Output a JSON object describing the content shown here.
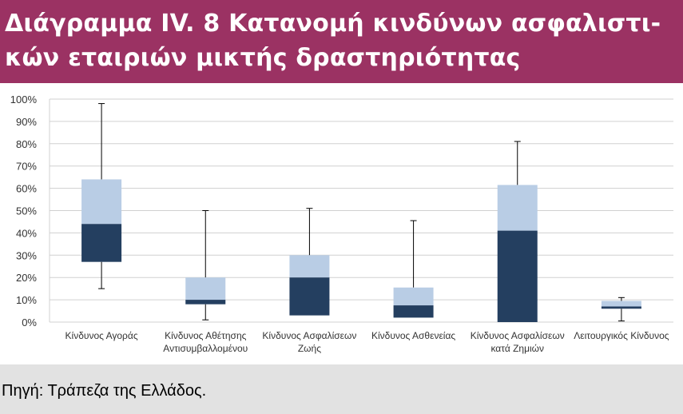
{
  "header": {
    "title_line1": "Διάγραμμα IV. 8 Κατανομή κινδύνων ασφαλιστι-",
    "title_line2": "κών εταιριών μικτής δραστηριότητας"
  },
  "colors": {
    "header_bg": "#9b3263",
    "lower_box": "#243f60",
    "upper_box": "#b9cde5",
    "whisker": "#000000",
    "grid": "#d0d0d0",
    "footer_bg": "#e2e2e2"
  },
  "chart_data": {
    "type": "boxplot",
    "ylim": [
      0,
      100
    ],
    "y_ticks": [
      "0%",
      "10%",
      "20%",
      "30%",
      "40%",
      "50%",
      "60%",
      "70%",
      "80%",
      "90%",
      "100%"
    ],
    "grid": true,
    "categories": [
      [
        "Κίνδυνος Αγοράς"
      ],
      [
        "Κίνδυνος Αθέτησης",
        "Αντισυμβαλλομένου"
      ],
      [
        "Κίνδυνος Ασφαλίσεων",
        "Ζωής"
      ],
      [
        "Κίνδυνος Ασθενείας"
      ],
      [
        "Κίνδυνος Ασφαλίσεων",
        "κατά Ζημιών"
      ],
      [
        "Λειτουργικός Κίνδυνος"
      ]
    ],
    "boxes": [
      {
        "min": 15,
        "q1": 27,
        "median": 44,
        "q3": 64,
        "max": 98
      },
      {
        "min": 1,
        "q1": 8,
        "median": 10,
        "q3": 20,
        "max": 50
      },
      {
        "min": 3,
        "q1": 3,
        "median": 20,
        "q3": 30,
        "max": 51
      },
      {
        "min": 2,
        "q1": 2,
        "median": 7.5,
        "q3": 15.5,
        "max": 45.5
      },
      {
        "min": 0,
        "q1": 0,
        "median": 41,
        "q3": 61.5,
        "max": 81
      },
      {
        "min": 0.5,
        "q1": 6,
        "median": 7,
        "q3": 9.5,
        "max": 11
      }
    ]
  },
  "source": "Πηγή: Τράπεζα της Ελλάδος."
}
